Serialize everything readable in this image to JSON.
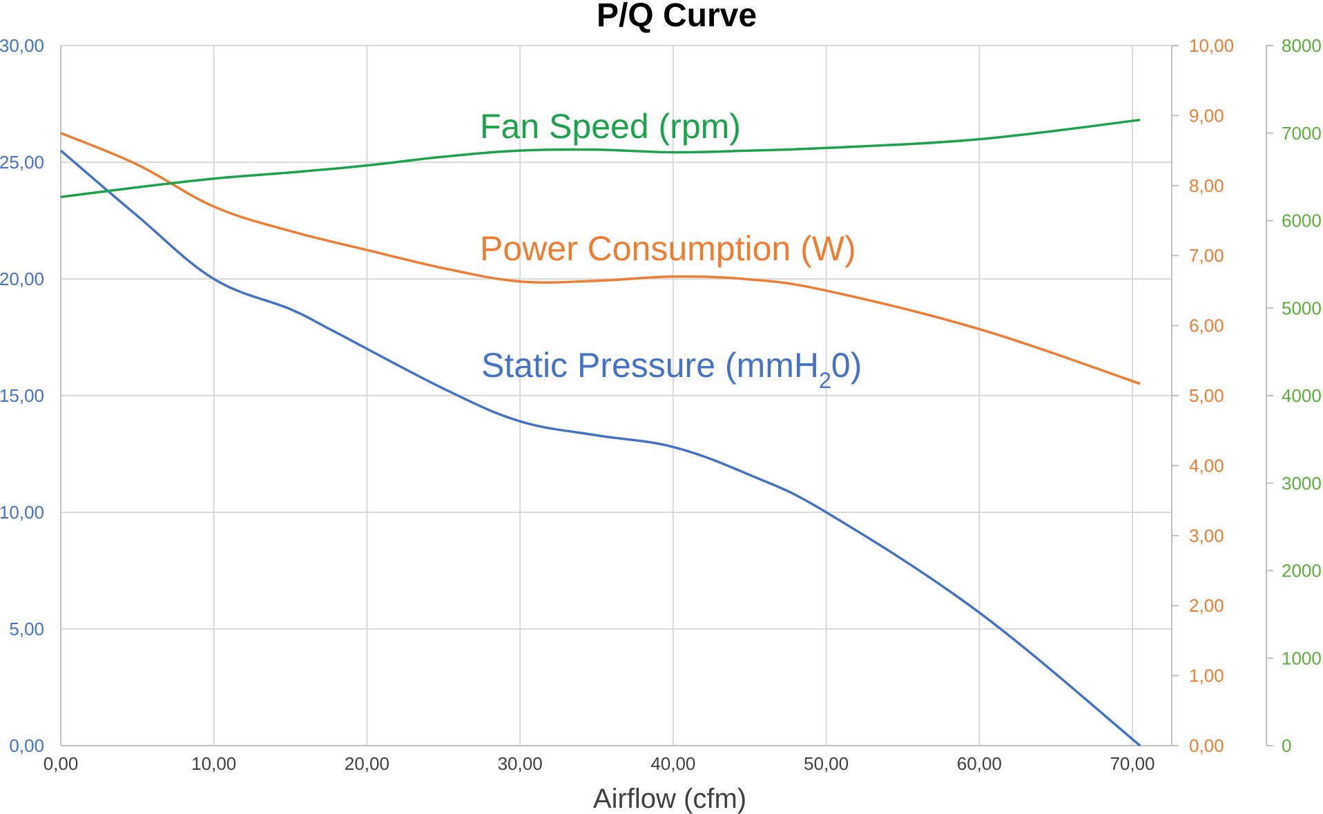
{
  "chart_data": {
    "type": "line",
    "title": "P/Q Curve",
    "xlabel": "Airflow (cfm)",
    "xlim": [
      0,
      70
    ],
    "x_ticks": [
      "0,00",
      "10,00",
      "20,00",
      "30,00",
      "40,00",
      "50,00",
      "60,00",
      "70,00"
    ],
    "grid": true,
    "axes": {
      "left": {
        "ylim": [
          0,
          30
        ],
        "ticks": [
          "0,00",
          "5,00",
          "10,00",
          "15,00",
          "20,00",
          "25,00",
          "30,00"
        ],
        "color": "#4472C4"
      },
      "right1": {
        "ylim": [
          0,
          10
        ],
        "ticks": [
          "0,00",
          "1,00",
          "2,00",
          "3,00",
          "4,00",
          "5,00",
          "6,00",
          "7,00",
          "8,00",
          "9,00",
          "10,00"
        ],
        "color": "#ED7D31"
      },
      "right2": {
        "ylim": [
          0,
          8000
        ],
        "ticks": [
          "0",
          "1000",
          "2000",
          "3000",
          "4000",
          "5000",
          "6000",
          "7000",
          "8000"
        ],
        "color": "#5BAE3C"
      }
    },
    "series": [
      {
        "name": "Static Pressure (mmH",
        "name_sub": "2",
        "name_tail": "0)",
        "axis": "left",
        "color": "#4472C4",
        "x": [
          0,
          5,
          10,
          15,
          18,
          25,
          30,
          35,
          40,
          45,
          50,
          60,
          70.5
        ],
        "y": [
          25.5,
          22.7,
          20.0,
          18.7,
          17.7,
          15.3,
          13.9,
          13.3,
          12.8,
          11.6,
          10.0,
          5.7,
          0
        ]
      },
      {
        "name": "Power Consumption (W)",
        "axis": "right1",
        "color": "#ED7D31",
        "x": [
          0,
          5,
          10,
          15,
          20,
          25,
          30,
          35,
          40,
          45,
          50,
          60,
          70.5
        ],
        "y": [
          8.75,
          8.3,
          7.7,
          7.35,
          7.08,
          6.82,
          6.63,
          6.64,
          6.7,
          6.66,
          6.5,
          5.95,
          5.17
        ]
      },
      {
        "name": "Fan Speed (rpm)",
        "axis": "right2",
        "color": "#1AA34A",
        "x": [
          0,
          5,
          10,
          15,
          20,
          25,
          30,
          35,
          40,
          45,
          50,
          60,
          70.5
        ],
        "y": [
          6270,
          6380,
          6480,
          6550,
          6630,
          6730,
          6800,
          6810,
          6780,
          6800,
          6830,
          6930,
          7150
        ]
      }
    ]
  }
}
